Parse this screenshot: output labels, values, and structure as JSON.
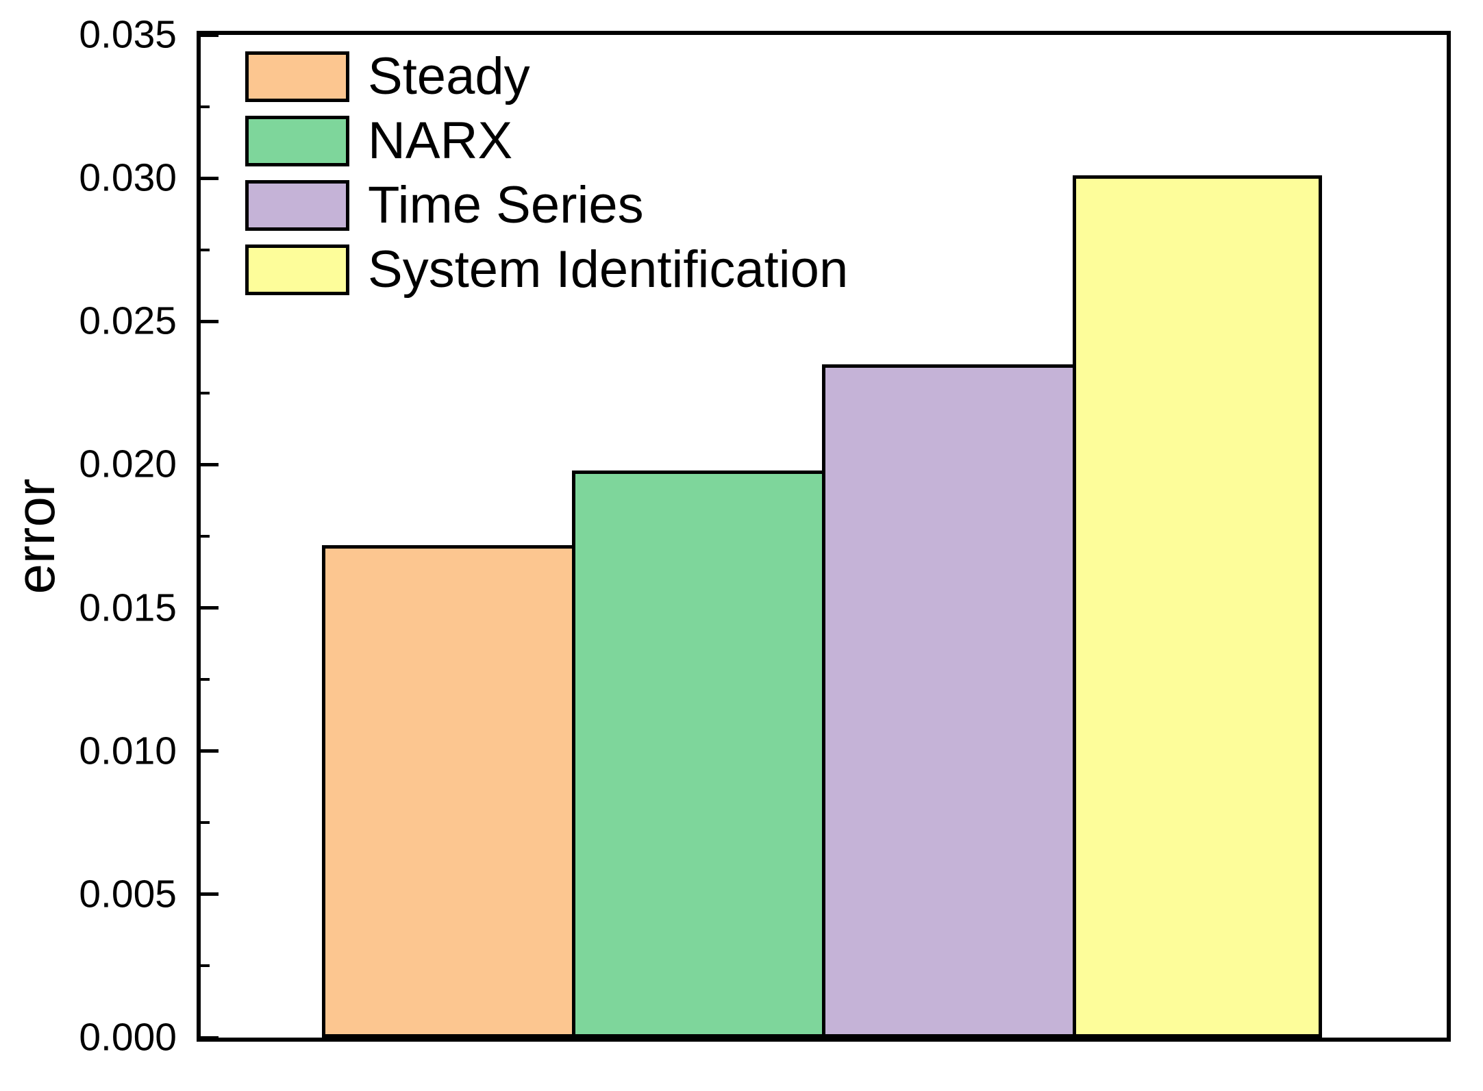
{
  "chart_data": {
    "type": "bar",
    "title": "",
    "xlabel": "",
    "ylabel": "error",
    "categories": [
      "Steady",
      "NARX",
      "Time Series",
      "System Identification"
    ],
    "values": [
      0.0172,
      0.0198,
      0.0235,
      0.0301
    ],
    "colors": [
      "#FCC690",
      "#7ED69B",
      "#C5B3D7",
      "#FDFD9A"
    ],
    "bar_border_color": "#000000",
    "axis_color": "#000000",
    "text_color": "#000000",
    "background_color": "#ffffff",
    "ylim": [
      0,
      0.035
    ],
    "y_major_step": 0.005,
    "y_minor_step": 0.0025,
    "y_tick_labels": [
      "0.000",
      "0.005",
      "0.010",
      "0.015",
      "0.020",
      "0.025",
      "0.030",
      "0.035"
    ],
    "x_tick_labels": [],
    "grid": false,
    "legend_position": "top-left-inside",
    "tick_direction": "in"
  }
}
